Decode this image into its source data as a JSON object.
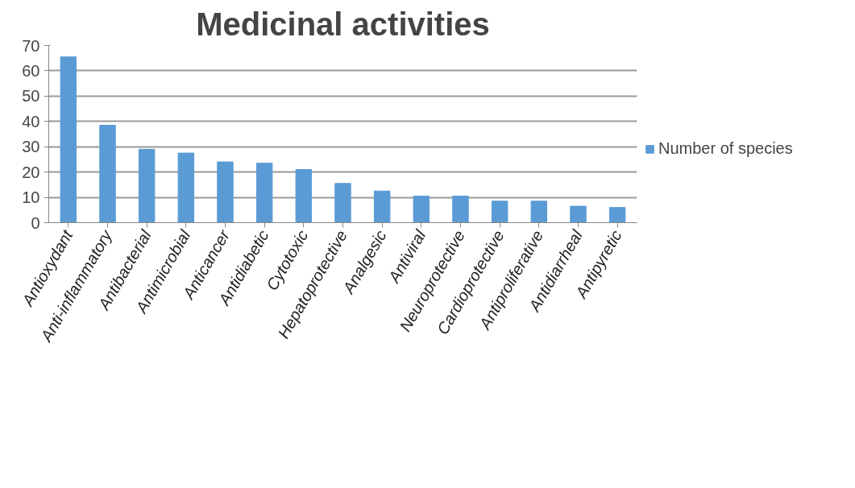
{
  "chart_data": {
    "type": "bar",
    "title": "Medicinal activities",
    "categories": [
      "Antioxydant",
      "Anti-inflammatory",
      "Antibacterial",
      "Antimicrobial",
      "Anticancer",
      "Antidiabetic",
      "Cytotoxic",
      "Hepatoprotective",
      "Analgesic",
      "Antiviral",
      "Neuroprotective",
      "Cardioprotective",
      "Antiproliferative",
      "Antidiarrheal",
      "Antipyretic"
    ],
    "series": [
      {
        "name": "Number of species",
        "color": "#5b9bd5",
        "values": [
          65.5,
          38.5,
          29,
          27.5,
          24,
          23.5,
          21,
          15.5,
          12.5,
          10.5,
          10.5,
          8.5,
          8.5,
          6.5,
          6
        ]
      }
    ],
    "ylim": [
      0,
      70
    ],
    "yticks": [
      0,
      10,
      20,
      30,
      40,
      50,
      60,
      70
    ],
    "grid": "y",
    "legend": "right"
  }
}
